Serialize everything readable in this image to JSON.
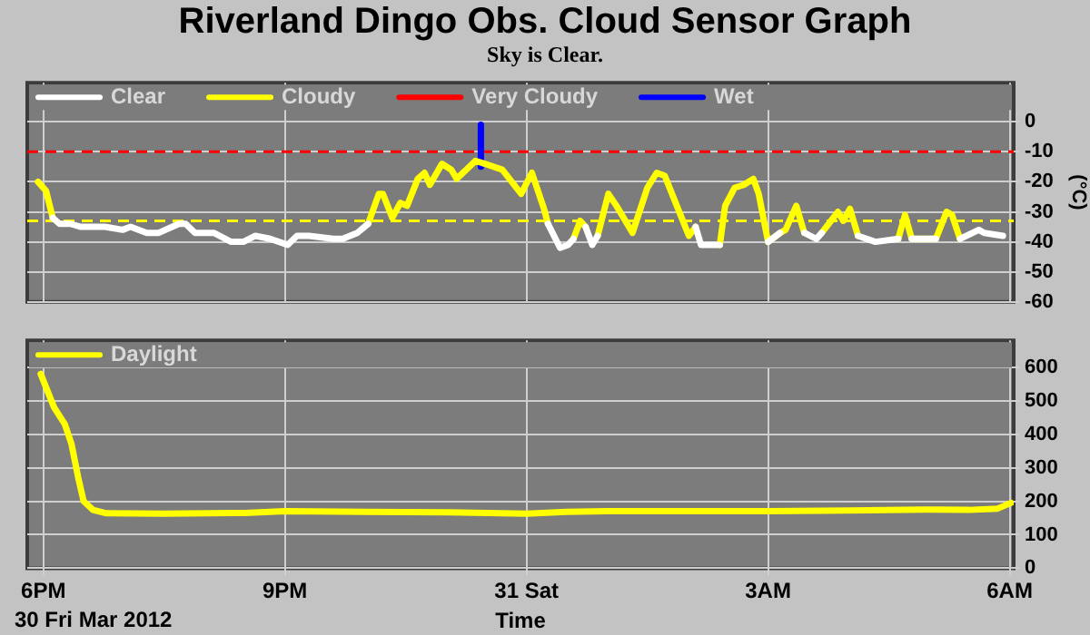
{
  "chart_data": [
    {
      "type": "line",
      "title": "Riverland Dingo Obs. Cloud Sensor Graph",
      "subtitle": "Sky is Clear.",
      "ylabel": "(°C)",
      "x": [
        "2012-03-30T17:56",
        "2012-03-30T18:02",
        "2012-03-30T18:07",
        "2012-03-30T18:12",
        "2012-03-30T18:20",
        "2012-03-30T18:28",
        "2012-03-30T18:46",
        "2012-03-30T18:59",
        "2012-03-30T19:05",
        "2012-03-30T19:17",
        "2012-03-30T19:26",
        "2012-03-30T19:41",
        "2012-03-30T19:46",
        "2012-03-30T19:53",
        "2012-03-30T20:07",
        "2012-03-30T20:20",
        "2012-03-30T20:29",
        "2012-03-30T20:38",
        "2012-03-30T20:49",
        "2012-03-30T21:02",
        "2012-03-30T21:09",
        "2012-03-30T21:18",
        "2012-03-30T21:36",
        "2012-03-30T21:43",
        "2012-03-30T21:54",
        "2012-03-30T22:02",
        "2012-03-30T22:10",
        "2012-03-30T22:13",
        "2012-03-30T22:20",
        "2012-03-30T22:26",
        "2012-03-30T22:31",
        "2012-03-30T22:39",
        "2012-03-30T22:44",
        "2012-03-30T22:48",
        "2012-03-30T22:57",
        "2012-03-30T23:04",
        "2012-03-30T23:08",
        "2012-03-30T23:15",
        "2012-03-30T23:22",
        "2012-03-30T23:29",
        "2012-03-30T23:42",
        "2012-03-30T23:56",
        "2012-03-31T00:04",
        "2012-03-31T00:13",
        "2012-03-31T00:16",
        "2012-03-31T00:25",
        "2012-03-31T00:31",
        "2012-03-31T00:35",
        "2012-03-31T00:40",
        "2012-03-31T00:44",
        "2012-03-31T00:49",
        "2012-03-31T00:53",
        "2012-03-31T01:01",
        "2012-03-31T01:07",
        "2012-03-31T01:19",
        "2012-03-31T01:30",
        "2012-03-31T01:37",
        "2012-03-31T01:43",
        "2012-03-31T01:52",
        "2012-03-31T02:01",
        "2012-03-31T02:06",
        "2012-03-31T02:10",
        "2012-03-31T02:24",
        "2012-03-31T02:28",
        "2012-03-31T02:35",
        "2012-03-31T02:42",
        "2012-03-31T02:49",
        "2012-03-31T02:53",
        "2012-03-31T03:00",
        "2012-03-31T03:09",
        "2012-03-31T03:13",
        "2012-03-31T03:21",
        "2012-03-31T03:27",
        "2012-03-31T03:36",
        "2012-03-31T03:40",
        "2012-03-31T03:52",
        "2012-03-31T03:56",
        "2012-03-31T04:01",
        "2012-03-31T04:07",
        "2012-03-31T04:20",
        "2012-03-31T04:37",
        "2012-03-31T04:42",
        "2012-03-31T04:47",
        "2012-03-31T05:05",
        "2012-03-31T05:13",
        "2012-03-31T05:17",
        "2012-03-31T05:23",
        "2012-03-31T05:37",
        "2012-03-31T05:41",
        "2012-03-31T05:55"
      ],
      "series": [
        {
          "name": "Clear",
          "color": "#ffffff",
          "values": [
            null,
            null,
            -32,
            -34,
            -34,
            -35,
            -35,
            -36,
            -35,
            -37,
            -37,
            -34,
            -34,
            -37,
            -37,
            -40,
            -40,
            -38,
            -39,
            -41,
            -38,
            -38,
            -39,
            -39,
            -37,
            -34,
            null,
            null,
            null,
            null,
            null,
            null,
            null,
            null,
            null,
            null,
            null,
            null,
            null,
            null,
            null,
            null,
            null,
            null,
            -34,
            -42,
            -41,
            -39,
            null,
            -35,
            -41,
            -38,
            null,
            null,
            null,
            null,
            null,
            null,
            null,
            null,
            -35,
            -41,
            -41,
            null,
            null,
            null,
            null,
            null,
            -40,
            -37,
            null,
            null,
            -37,
            -39,
            -37,
            null,
            null,
            null,
            -38,
            -40,
            -39,
            null,
            -39,
            -39,
            null,
            null,
            -39,
            -36,
            -37,
            -38
          ]
        },
        {
          "name": "Cloudy",
          "color": "#ffff00",
          "values": [
            -20,
            -23,
            -32,
            null,
            null,
            null,
            null,
            null,
            null,
            null,
            null,
            null,
            null,
            null,
            null,
            null,
            null,
            null,
            null,
            null,
            null,
            null,
            null,
            null,
            null,
            -34,
            -24,
            -24,
            -32,
            -27,
            -28,
            -19,
            -17,
            -21,
            -14,
            -16,
            -19,
            -16,
            -13,
            -14,
            -16,
            -24,
            -17,
            -29,
            -34,
            null,
            null,
            -39,
            -33,
            -35,
            null,
            -38,
            -24,
            -28,
            -37,
            -22,
            -17,
            -18,
            -28,
            -38,
            -35,
            null,
            -41,
            -28,
            -22,
            -21,
            -19,
            -24,
            -40,
            -37,
            -36,
            -28,
            -37,
            null,
            -37,
            -30,
            -33,
            -29,
            -38,
            null,
            -39,
            -31,
            -39,
            -39,
            -30,
            -31,
            -39,
            null,
            null,
            null
          ]
        },
        {
          "name": "Very Cloudy",
          "color": "#ff0000",
          "values": [
            null,
            null,
            null,
            null,
            null,
            null,
            null,
            null,
            null,
            null,
            null,
            null,
            null,
            null,
            null,
            null,
            null,
            null,
            null,
            null,
            null,
            null,
            null,
            null,
            null,
            null,
            null,
            null,
            null,
            null,
            null,
            null,
            null,
            null,
            null,
            null,
            null,
            null,
            null,
            null,
            null,
            null,
            null,
            null,
            null,
            null,
            null,
            null,
            null,
            null,
            null,
            null,
            null,
            null,
            null,
            null,
            null,
            null,
            null,
            null,
            null,
            null,
            null,
            null,
            null,
            null,
            null,
            null,
            null,
            null,
            null,
            null,
            null,
            null,
            null,
            null,
            null,
            null,
            null,
            null,
            null,
            null,
            null,
            null,
            null,
            null,
            null,
            null,
            null,
            null
          ]
        },
        {
          "name": "Wet",
          "color": "#0000ff",
          "x": [
            "2012-03-30T23:26",
            "2012-03-30T23:26"
          ],
          "values": [
            -1,
            -15
          ]
        }
      ],
      "xlim": [
        "2012-03-30T17:48",
        "2012-03-31T06:03"
      ],
      "xticks": [
        {
          "value": "2012-03-30T18:00",
          "label": null
        },
        {
          "value": "2012-03-30T21:00",
          "label": null
        },
        {
          "value": "2012-03-31T00:00",
          "label": null
        },
        {
          "value": "2012-03-31T03:00",
          "label": null
        },
        {
          "value": "2012-03-31T06:00",
          "label": null
        }
      ],
      "ylim": [
        -60,
        13
      ],
      "yticks": [
        -60,
        -50,
        -40,
        -30,
        -20,
        -10,
        0
      ],
      "ref_lines": [
        {
          "axis": "y",
          "value": -10,
          "color": "#ff0000",
          "line_style": "dashed"
        },
        {
          "axis": "y",
          "value": -33,
          "color": "#ffff00",
          "line_style": "dashed"
        }
      ],
      "grid": true,
      "legend": "top left",
      "tick_labels": "y"
    },
    {
      "type": "line",
      "xlabel": "Time",
      "annotations": [
        "30 Fri Mar 2012"
      ],
      "x": [
        "2012-03-30T17:58",
        "2012-03-30T18:02",
        "2012-03-30T18:08",
        "2012-03-30T18:16",
        "2012-03-30T18:21",
        "2012-03-30T18:26",
        "2012-03-30T18:30",
        "2012-03-30T18:37",
        "2012-03-30T18:47",
        "2012-03-30T19:30",
        "2012-03-30T20:30",
        "2012-03-30T21:00",
        "2012-03-30T22:00",
        "2012-03-30T23:00",
        "2012-03-31T00:00",
        "2012-03-31T00:30",
        "2012-03-31T01:00",
        "2012-03-31T02:00",
        "2012-03-31T03:00",
        "2012-03-31T04:00",
        "2012-03-31T05:00",
        "2012-03-31T05:30",
        "2012-03-31T05:51",
        "2012-03-31T06:01"
      ],
      "series": [
        {
          "name": "Daylight",
          "color": "#ffff00",
          "values": [
            580,
            540,
            480,
            430,
            370,
            270,
            200,
            174,
            164,
            163,
            165,
            170,
            168,
            167,
            163,
            168,
            170,
            170,
            170,
            172,
            175,
            174,
            178,
            195
          ]
        }
      ],
      "xlim": [
        "2012-03-30T17:48",
        "2012-03-31T06:03"
      ],
      "xticks": [
        {
          "value": "2012-03-30T18:00",
          "label": "6PM"
        },
        {
          "value": "2012-03-30T21:00",
          "label": "9PM"
        },
        {
          "value": "2012-03-31T00:00",
          "label": "31 Sat"
        },
        {
          "value": "2012-03-31T03:00",
          "label": "3AM"
        },
        {
          "value": "2012-03-31T06:00",
          "label": "6AM"
        }
      ],
      "ylim": [
        0,
        680
      ],
      "yticks": [
        0,
        100,
        200,
        300,
        400,
        500,
        600
      ],
      "grid": true,
      "legend": "top left"
    }
  ]
}
